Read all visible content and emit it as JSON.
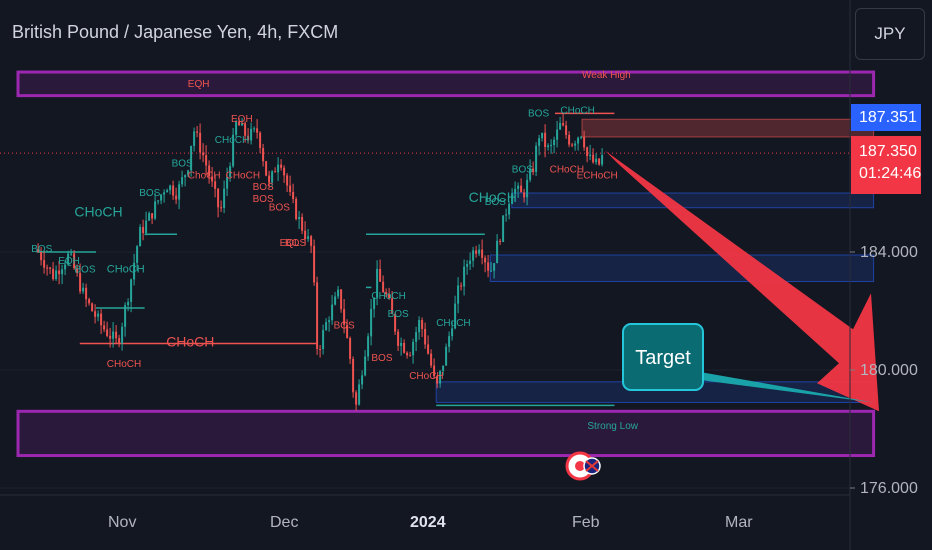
{
  "header": {
    "title": "British Pound / Japanese Yen, 4h, FXCM"
  },
  "currency_button": {
    "label": "JPY"
  },
  "price_tags": {
    "last_price": "187.351",
    "bid_price": "187.350",
    "countdown": "01:24:46"
  },
  "colors": {
    "background": "#131722",
    "bull": "#26a69a",
    "bear": "#ef5350",
    "zone": "#9c27b0",
    "arrow": "#f23645",
    "price_tag_blue": "#2962ff",
    "target_box": "#0b6b73"
  },
  "chart_data": {
    "type": "candlestick",
    "title": "British Pound / Japanese Yen, 4h, FXCM",
    "x_axis": {
      "ticks": [
        "Nov",
        "Dec",
        "2024",
        "Feb",
        "Mar"
      ]
    },
    "y_axis": {
      "ticks": [
        176.0,
        180.0,
        184.0
      ],
      "range": [
        175.6,
        190.6
      ]
    },
    "current_price": 187.35,
    "path": [
      {
        "d": "2023-10-16",
        "p": 184.1
      },
      {
        "d": "2023-10-19",
        "p": 183.2
      },
      {
        "d": "2023-10-22",
        "p": 183.9
      },
      {
        "d": "2023-10-25",
        "p": 182.4
      },
      {
        "d": "2023-10-28",
        "p": 181.5
      },
      {
        "d": "2023-10-31",
        "p": 180.9
      },
      {
        "d": "2023-11-02",
        "p": 182.6
      },
      {
        "d": "2023-11-04",
        "p": 184.6
      },
      {
        "d": "2023-11-06",
        "p": 185.2
      },
      {
        "d": "2023-11-09",
        "p": 186.3
      },
      {
        "d": "2023-11-11",
        "p": 186.0
      },
      {
        "d": "2023-11-13",
        "p": 186.9
      },
      {
        "d": "2023-11-14",
        "p": 188.2
      },
      {
        "d": "2023-11-16",
        "p": 187.2
      },
      {
        "d": "2023-11-19",
        "p": 185.3
      },
      {
        "d": "2023-11-21",
        "p": 187.3
      },
      {
        "d": "2023-11-22",
        "p": 188.4
      },
      {
        "d": "2023-11-24",
        "p": 187.9
      },
      {
        "d": "2023-11-26",
        "p": 188.1
      },
      {
        "d": "2023-11-28",
        "p": 186.2
      },
      {
        "d": "2023-11-30",
        "p": 187.3
      },
      {
        "d": "2023-12-02",
        "p": 185.8
      },
      {
        "d": "2023-12-04",
        "p": 184.9
      },
      {
        "d": "2023-12-06",
        "p": 184.1
      },
      {
        "d": "2023-12-07",
        "p": 180.6
      },
      {
        "d": "2023-12-09",
        "p": 181.8
      },
      {
        "d": "2023-12-11",
        "p": 182.6
      },
      {
        "d": "2023-12-13",
        "p": 180.5
      },
      {
        "d": "2023-12-14",
        "p": 178.6
      },
      {
        "d": "2023-12-16",
        "p": 180.9
      },
      {
        "d": "2023-12-18",
        "p": 183.2
      },
      {
        "d": "2023-12-20",
        "p": 182.4
      },
      {
        "d": "2023-12-22",
        "p": 181.0
      },
      {
        "d": "2023-12-24",
        "p": 180.6
      },
      {
        "d": "2023-12-26",
        "p": 181.7
      },
      {
        "d": "2023-12-28",
        "p": 180.2
      },
      {
        "d": "2023-12-29",
        "p": 179.3
      },
      {
        "d": "2023-12-31",
        "p": 180.8
      },
      {
        "d": "2024-01-02",
        "p": 182.6
      },
      {
        "d": "2024-01-04",
        "p": 183.8
      },
      {
        "d": "2024-01-06",
        "p": 184.3
      },
      {
        "d": "2024-01-08",
        "p": 183.3
      },
      {
        "d": "2024-01-10",
        "p": 184.7
      },
      {
        "d": "2024-01-12",
        "p": 186.2
      },
      {
        "d": "2024-01-14",
        "p": 185.9
      },
      {
        "d": "2024-01-16",
        "p": 186.9
      },
      {
        "d": "2024-01-17",
        "p": 188.0
      },
      {
        "d": "2024-01-19",
        "p": 187.4
      },
      {
        "d": "2024-01-21",
        "p": 188.3
      },
      {
        "d": "2024-01-23",
        "p": 187.7
      },
      {
        "d": "2024-01-25",
        "p": 188.1
      },
      {
        "d": "2024-01-26",
        "p": 187.2
      },
      {
        "d": "2024-01-28",
        "p": 186.9
      },
      {
        "d": "2024-01-29",
        "p": 187.35
      }
    ],
    "zones": [
      {
        "label": "EQH",
        "from": "2023-10-16",
        "to": "2024-03-19",
        "y1": 189.3,
        "y2": 190.1,
        "kind": "supply"
      },
      {
        "label": "Strong Low",
        "from": "2023-10-16",
        "to": "2024-03-19",
        "y1": 177.1,
        "y2": 178.6,
        "kind": "demand"
      },
      {
        "label": "",
        "from": "2024-01-25",
        "to": "2024-03-19",
        "y1": 187.9,
        "y2": 188.5,
        "kind": "weak-high"
      },
      {
        "label": "",
        "from": "2024-01-12",
        "to": "2024-03-19",
        "y1": 185.5,
        "y2": 186.0,
        "kind": "ob"
      },
      {
        "label": "",
        "from": "2024-01-08",
        "to": "2024-03-19",
        "y1": 183.0,
        "y2": 183.9,
        "kind": "ob"
      },
      {
        "label": "",
        "from": "2023-12-29",
        "to": "2024-03-19",
        "y1": 178.9,
        "y2": 179.6,
        "kind": "ob"
      }
    ],
    "structure_lines": [
      {
        "from": "2023-10-16",
        "to": "2023-10-27",
        "y": 184.0,
        "color": "bull"
      },
      {
        "from": "2023-10-27",
        "to": "2023-11-05",
        "y": 182.1,
        "color": "bull"
      },
      {
        "from": "2023-11-05",
        "to": "2023-11-11",
        "y": 184.6,
        "color": "bull"
      },
      {
        "from": "2023-10-24",
        "to": "2023-12-07",
        "y": 180.9,
        "color": "bear"
      },
      {
        "from": "2023-12-16",
        "to": "2024-01-07",
        "y": 184.6,
        "color": "bull"
      },
      {
        "from": "2023-12-16",
        "to": "2023-12-17",
        "y": 182.8,
        "color": "bull"
      },
      {
        "from": "2023-12-29",
        "to": "2024-01-31",
        "y": 178.8,
        "color": "bull"
      },
      {
        "from": "2024-01-20",
        "to": "2024-01-31",
        "y": 188.7,
        "color": "bear"
      }
    ],
    "annotations": [
      {
        "text": "EQH",
        "d": "2023-11-13",
        "y": 189.6,
        "color": "bear",
        "size": 10
      },
      {
        "text": "Weak High",
        "d": "2024-01-25",
        "y": 189.9,
        "color": "bear",
        "size": 10
      },
      {
        "text": "Strong Low",
        "d": "2024-01-26",
        "y": 178.0,
        "color": "bull",
        "size": 10
      },
      {
        "text": "EQH",
        "d": "2023-10-20",
        "y": 183.6,
        "color": "bull",
        "size": 10
      },
      {
        "text": "BOS",
        "d": "2023-10-15",
        "y": 184.0,
        "color": "bull",
        "size": 10
      },
      {
        "text": "BOS",
        "d": "2023-10-23",
        "y": 183.3,
        "color": "bull",
        "size": 10
      },
      {
        "text": "CHoCH",
        "d": "2023-10-29",
        "y": 183.3,
        "color": "bull",
        "size": 11
      },
      {
        "text": "CHoCH",
        "d": "2023-10-23",
        "y": 185.2,
        "color": "bull",
        "size": 14
      },
      {
        "text": "BOS",
        "d": "2023-11-04",
        "y": 185.9,
        "color": "bull",
        "size": 10
      },
      {
        "text": "BOS",
        "d": "2023-11-10",
        "y": 186.9,
        "color": "bull",
        "size": 10
      },
      {
        "text": "ChoCH",
        "d": "2023-11-13",
        "y": 186.5,
        "color": "bear",
        "size": 10
      },
      {
        "text": "CHoCH",
        "d": "2023-10-29",
        "y": 180.1,
        "color": "bear",
        "size": 10
      },
      {
        "text": "CHoCH",
        "d": "2023-11-09",
        "y": 180.8,
        "color": "bear",
        "size": 14
      },
      {
        "text": "CHoCH",
        "d": "2023-11-18",
        "y": 187.7,
        "color": "bull",
        "size": 10
      },
      {
        "text": "EQH",
        "d": "2023-11-21",
        "y": 188.4,
        "color": "bear",
        "size": 10
      },
      {
        "text": "CHoCH",
        "d": "2023-11-20",
        "y": 186.5,
        "color": "bear",
        "size": 10
      },
      {
        "text": "BOS",
        "d": "2023-11-25",
        "y": 186.1,
        "color": "bear",
        "size": 10
      },
      {
        "text": "BOS",
        "d": "2023-11-25",
        "y": 185.7,
        "color": "bear",
        "size": 10
      },
      {
        "text": "BOS",
        "d": "2023-11-28",
        "y": 185.4,
        "color": "bear",
        "size": 10
      },
      {
        "text": "EQL",
        "d": "2023-11-30",
        "y": 184.2,
        "color": "bear",
        "size": 10
      },
      {
        "text": "BOS",
        "d": "2023-12-01",
        "y": 184.2,
        "color": "bear",
        "size": 10
      },
      {
        "text": "CHoCH",
        "d": "2023-12-17",
        "y": 182.4,
        "color": "bull",
        "size": 10
      },
      {
        "text": "BOS",
        "d": "2023-12-10",
        "y": 181.4,
        "color": "bear",
        "size": 10
      },
      {
        "text": "BOS",
        "d": "2023-12-20",
        "y": 181.8,
        "color": "bull",
        "size": 10
      },
      {
        "text": "CHoCH",
        "d": "2023-12-29",
        "y": 181.5,
        "color": "bull",
        "size": 10
      },
      {
        "text": "BOS",
        "d": "2023-12-17",
        "y": 180.3,
        "color": "bear",
        "size": 10
      },
      {
        "text": "CHoCH",
        "d": "2023-12-24",
        "y": 179.7,
        "color": "bear",
        "size": 10
      },
      {
        "text": "CHoCH",
        "d": "2024-01-04",
        "y": 185.7,
        "color": "bull",
        "size": 14
      },
      {
        "text": "BOS",
        "d": "2024-01-07",
        "y": 185.6,
        "color": "bull",
        "size": 10
      },
      {
        "text": "BOS",
        "d": "2024-01-12",
        "y": 186.7,
        "color": "bull",
        "size": 10
      },
      {
        "text": "BOS",
        "d": "2024-01-15",
        "y": 188.6,
        "color": "bull",
        "size": 10
      },
      {
        "text": "CHoCH",
        "d": "2024-01-21",
        "y": 188.7,
        "color": "bull",
        "size": 10
      },
      {
        "text": "CHoCH",
        "d": "2024-01-19",
        "y": 186.7,
        "color": "bear",
        "size": 10
      },
      {
        "text": "ECHoCH",
        "d": "2024-01-24",
        "y": 186.5,
        "color": "bear",
        "size": 10
      }
    ],
    "forecast_arrow": {
      "from": {
        "d": "2024-01-30",
        "y": 187.3
      },
      "to": {
        "d": "2024-03-20",
        "y": 178.6
      }
    },
    "target_callout": {
      "text": "Target",
      "d": "2024-03-19",
      "y": 178.9
    },
    "current_price_line": 187.35
  }
}
